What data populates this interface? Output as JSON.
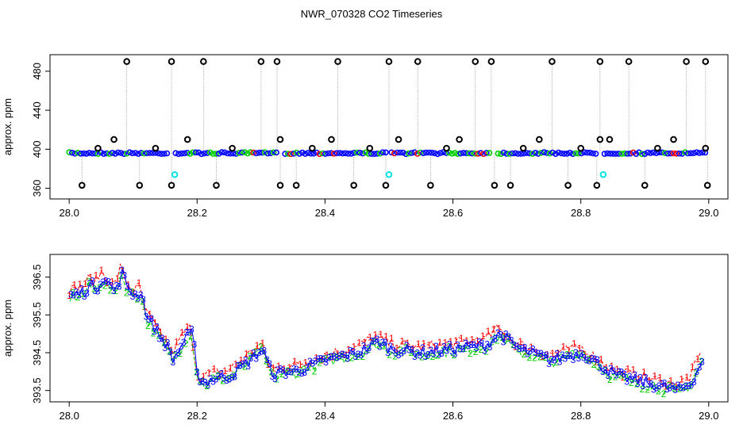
{
  "title": "NWR_070328  CO2 Timeseries",
  "colors": {
    "series1": "#ff0000",
    "series2": "#00cc00",
    "series3": "#0000ff",
    "flagged_black": "#000000",
    "flagged_cyan": "#00e5e5",
    "spike_line": "#888888"
  },
  "chart_data": [
    {
      "type": "scatter",
      "ylabel": "approx. ppm",
      "xlim": [
        27.97,
        29.03
      ],
      "ylim": [
        349,
        497
      ],
      "xticks": [
        "28.0",
        "28.2",
        "28.4",
        "28.6",
        "28.8",
        "29.0"
      ],
      "yticks": [
        "360",
        "400",
        "440",
        "480"
      ],
      "grid": false,
      "legend": "none",
      "baseline": {
        "start": 28.0,
        "end": 28.995,
        "value": 396
      },
      "segment_breaks": [
        28.16,
        28.33,
        28.5,
        28.665,
        28.83
      ],
      "flagged_high": {
        "y": 490,
        "x": [
          28.09,
          28.16,
          28.21,
          28.3,
          28.325,
          28.42,
          28.5,
          28.545,
          28.635,
          28.66,
          28.755,
          28.83,
          28.875,
          28.965,
          28.995
        ]
      },
      "flagged_low": {
        "y": 363,
        "x": [
          28.02,
          28.11,
          28.16,
          28.23,
          28.33,
          28.355,
          28.445,
          28.495,
          28.565,
          28.665,
          28.69,
          28.78,
          28.825,
          28.9,
          28.998
        ]
      },
      "flagged_mid": {
        "y": 410,
        "x": [
          28.07,
          28.185,
          28.33,
          28.41,
          28.515,
          28.61,
          28.735,
          28.83,
          28.845,
          28.945
        ]
      },
      "flagged_near": {
        "y": 401,
        "x": [
          28.045,
          28.135,
          28.255,
          28.38,
          28.47,
          28.59,
          28.71,
          28.8,
          28.92,
          28.995
        ]
      },
      "flagged_cyan": {
        "y": 374,
        "x": [
          28.165,
          28.5,
          28.835
        ]
      }
    },
    {
      "type": "line",
      "ylabel": "approx. ppm",
      "xlim": [
        27.97,
        29.03
      ],
      "ylim": [
        393.2,
        397.1
      ],
      "xticks": [
        "28.0",
        "28.2",
        "28.4",
        "28.6",
        "28.8",
        "29.0"
      ],
      "yticks": [
        "393.5",
        "394.5",
        "395.5",
        "396.5"
      ],
      "grid": false,
      "legend": "none",
      "series": [
        {
          "marker": "1",
          "color": "#ff0000",
          "offset": 0.15
        },
        {
          "marker": "2",
          "color": "#00cc00",
          "offset": -0.05
        },
        {
          "marker": "3",
          "color": "#0000ff",
          "offset": 0.0
        }
      ],
      "profile": {
        "x": [
          28.0,
          28.02,
          28.03,
          28.04,
          28.05,
          28.06,
          28.07,
          28.08,
          28.09,
          28.1,
          28.11,
          28.12,
          28.13,
          28.14,
          28.15,
          28.16,
          28.17,
          28.18,
          28.19,
          28.2,
          28.21,
          28.22,
          28.25,
          28.28,
          28.3,
          28.31,
          28.32,
          28.33,
          28.35,
          28.4,
          28.45,
          28.48,
          28.5,
          28.55,
          28.6,
          28.65,
          28.67,
          28.7,
          28.75,
          28.8,
          28.85,
          28.9,
          28.95,
          28.97,
          28.99
        ],
        "y": [
          396.0,
          396.1,
          396.3,
          396.2,
          396.5,
          396.3,
          396.1,
          396.6,
          396.2,
          396.0,
          396.1,
          395.4,
          395.2,
          394.9,
          394.7,
          394.3,
          394.6,
          394.9,
          395.0,
          393.8,
          393.7,
          393.8,
          393.9,
          394.3,
          394.6,
          394.1,
          393.9,
          394.0,
          394.0,
          394.3,
          394.5,
          394.8,
          394.6,
          394.5,
          394.6,
          394.7,
          395.0,
          394.6,
          394.3,
          394.5,
          393.9,
          393.7,
          393.5,
          393.7,
          394.4
        ]
      }
    }
  ]
}
